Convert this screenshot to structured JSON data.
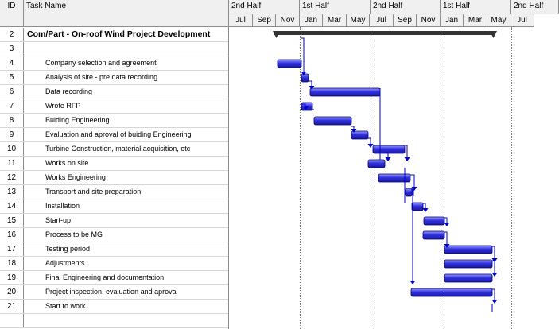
{
  "columns": {
    "id": "ID",
    "task_name": "Task Name"
  },
  "timescale": {
    "halves": [
      "2nd Half",
      "1st Half",
      "2nd Half",
      "1st Half",
      "2nd Half"
    ],
    "months": [
      "Jul",
      "Sep",
      "Nov",
      "Jan",
      "Mar",
      "May",
      "Jul",
      "Sep",
      "Nov",
      "Jan",
      "Mar",
      "May",
      "Jul"
    ]
  },
  "colors": {
    "bar": "#3030e0",
    "summary": "#333333",
    "link": "#0000cc"
  },
  "tasks": [
    {
      "id": "2",
      "name": "Com/Part - On-roof Wind Project Development",
      "summary": true
    },
    {
      "id": "3",
      "name": ""
    },
    {
      "id": "4",
      "name": "Company selection and agreement"
    },
    {
      "id": "5",
      "name": "Analysis of site - pre data recording"
    },
    {
      "id": "6",
      "name": "Data recording"
    },
    {
      "id": "7",
      "name": "Wrote RFP"
    },
    {
      "id": "8",
      "name": "Buiding Engineering"
    },
    {
      "id": "9",
      "name": "Evaluation and aproval of buiding Engineering"
    },
    {
      "id": "10",
      "name": "Turbine Construction, material acquisition, etc"
    },
    {
      "id": "11",
      "name": "Works on site"
    },
    {
      "id": "12",
      "name": "Works Engineering"
    },
    {
      "id": "13",
      "name": "Transport and site preparation"
    },
    {
      "id": "14",
      "name": "Installation"
    },
    {
      "id": "15",
      "name": "Start-up"
    },
    {
      "id": "16",
      "name": "Process to be MG"
    },
    {
      "id": "17",
      "name": "Testing period"
    },
    {
      "id": "18",
      "name": "Adjustments"
    },
    {
      "id": "19",
      "name": "Final Engineering and documentation"
    },
    {
      "id": "20",
      "name": "Project inspection, evaluation and aproval"
    },
    {
      "id": "21",
      "name": "Start to work"
    }
  ]
}
